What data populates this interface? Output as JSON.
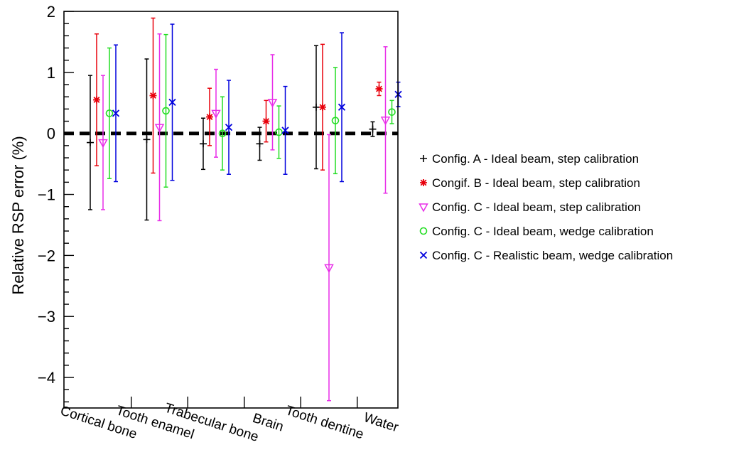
{
  "chart_data": {
    "type": "scatter",
    "ylabel": "Relative RSP error (%)",
    "xlabel": "",
    "ylim": [
      -4.5,
      2
    ],
    "yticks": [
      2,
      1,
      0,
      -1,
      -2,
      -3,
      -4
    ],
    "ytick_labels": [
      "2",
      "1",
      "0",
      "−1",
      "−2",
      "−3",
      "−4"
    ],
    "categories": [
      "Cortical bone",
      "Tooth enamel",
      "Trabecular bone",
      "Brain",
      "Tooth dentine",
      "Water"
    ],
    "reference_line": 0,
    "grid": false,
    "legend_position": "right",
    "series": [
      {
        "name": "Config. A - Ideal beam, step calibration",
        "marker": "+",
        "color": "#000000",
        "values": [
          -0.15,
          -0.1,
          -0.17,
          -0.17,
          0.43,
          0.07
        ],
        "errors": [
          1.1,
          1.32,
          0.42,
          0.27,
          1.01,
          0.12
        ]
      },
      {
        "name": "Congif. B - Ideal beam, step calibration",
        "marker": "*",
        "color": "#e8000b",
        "values": [
          0.55,
          0.62,
          0.27,
          0.2,
          0.43,
          0.73
        ],
        "errors": [
          1.08,
          1.27,
          0.47,
          0.34,
          1.03,
          0.11
        ]
      },
      {
        "name": "Config. C - Ideal beam, step calibration",
        "marker": "triangle-down",
        "color": "#e82ee8",
        "values": [
          -0.15,
          0.1,
          0.33,
          0.51,
          -2.2,
          0.22
        ],
        "errors": [
          1.1,
          1.53,
          0.72,
          0.78,
          2.18,
          1.2
        ]
      },
      {
        "name": "Config. C - Ideal beam, wedge calibration",
        "marker": "circle",
        "color": "#22dd22",
        "values": [
          0.33,
          0.37,
          0.0,
          0.02,
          0.21,
          0.35
        ],
        "errors": [
          1.07,
          1.25,
          0.6,
          0.43,
          0.87,
          0.19
        ]
      },
      {
        "name": "Config. C - Realistic beam, wedge calibration",
        "marker": "x",
        "color": "#0000dd",
        "values": [
          0.33,
          0.51,
          0.1,
          0.05,
          0.43,
          0.64
        ],
        "errors": [
          1.12,
          1.28,
          0.77,
          0.72,
          1.22,
          0.2
        ]
      }
    ]
  }
}
